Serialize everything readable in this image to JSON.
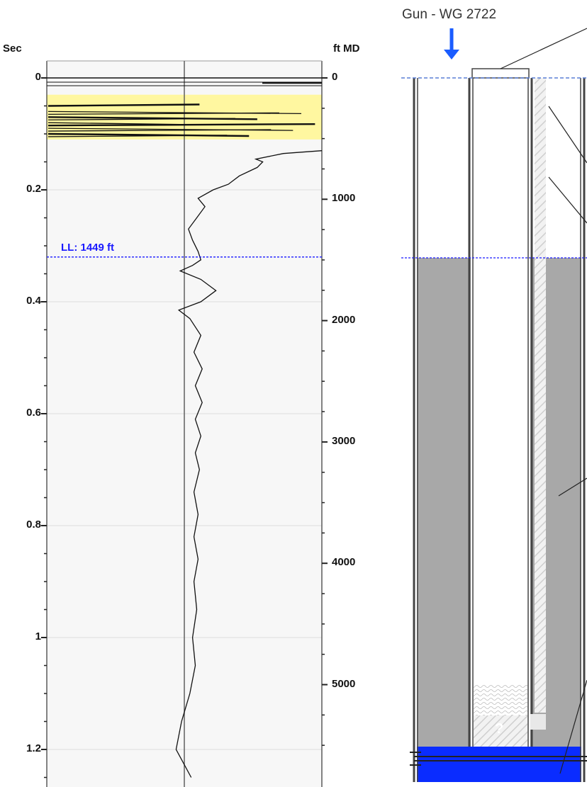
{
  "left_axis": {
    "label": "Sec",
    "ticks": [
      "0",
      "0.2",
      "0.4",
      "0.6",
      "0.8",
      "1",
      "1.2"
    ]
  },
  "right_axis": {
    "label": "ft MD",
    "ticks": [
      "0",
      "1000",
      "2000",
      "3000",
      "4000",
      "5000"
    ]
  },
  "liquid_level_label": "LL: 1449 ft",
  "gun_label": "Gun - WG 2722",
  "well_question_mark": "?",
  "colors": {
    "highlight_band": "#fff7a0",
    "plot_background": "#f7f7f7",
    "liquid_level_line": "#1a1aff",
    "fluid_gray": "#a8a8a8",
    "bottom_fluid": "#0a2cff",
    "gun_arrow": "#1a5cff"
  },
  "chart_data": {
    "type": "line",
    "title": "",
    "xlabel": "",
    "ylabel": "Sec",
    "y2label": "ft MD",
    "ylim": [
      0,
      1.25
    ],
    "y2lim": [
      0,
      5700
    ],
    "highlight_band_sec": [
      0.03,
      0.11
    ],
    "liquid_level_ft": 1449,
    "liquid_level_sec": 0.32,
    "series": [
      {
        "points": [
          [
            0.13,
            1.0
          ],
          [
            0.135,
            0.72
          ],
          [
            0.145,
            0.52
          ],
          [
            0.15,
            0.57
          ],
          [
            0.16,
            0.53
          ],
          [
            0.175,
            0.4
          ],
          [
            0.19,
            0.32
          ],
          [
            0.2,
            0.21
          ],
          [
            0.215,
            0.1
          ],
          [
            0.23,
            0.15
          ],
          [
            0.25,
            0.09
          ],
          [
            0.27,
            0.03
          ],
          [
            0.29,
            0.06
          ],
          [
            0.31,
            0.1
          ],
          [
            0.325,
            0.12
          ],
          [
            0.335,
            0.06
          ],
          [
            0.345,
            -0.03
          ],
          [
            0.36,
            0.12
          ],
          [
            0.38,
            0.23
          ],
          [
            0.4,
            0.12
          ],
          [
            0.415,
            -0.04
          ],
          [
            0.43,
            0.04
          ],
          [
            0.46,
            0.12
          ],
          [
            0.49,
            0.07
          ],
          [
            0.52,
            0.13
          ],
          [
            0.55,
            0.08
          ],
          [
            0.58,
            0.13
          ],
          [
            0.61,
            0.08
          ],
          [
            0.64,
            0.12
          ],
          [
            0.67,
            0.08
          ],
          [
            0.7,
            0.11
          ],
          [
            0.74,
            0.07
          ],
          [
            0.78,
            0.1
          ],
          [
            0.82,
            0.07
          ],
          [
            0.86,
            0.1
          ],
          [
            0.9,
            0.07
          ],
          [
            0.95,
            0.09
          ],
          [
            1.0,
            0.06
          ],
          [
            1.05,
            0.08
          ],
          [
            1.1,
            0.04
          ],
          [
            1.15,
            -0.02
          ],
          [
            1.2,
            -0.06
          ],
          [
            1.25,
            0.05
          ]
        ]
      }
    ],
    "bursts_sec": [
      0.05,
      0.06,
      0.065,
      0.07,
      0.075,
      0.08,
      0.085,
      0.09,
      0.095,
      0.1,
      0.105
    ]
  }
}
